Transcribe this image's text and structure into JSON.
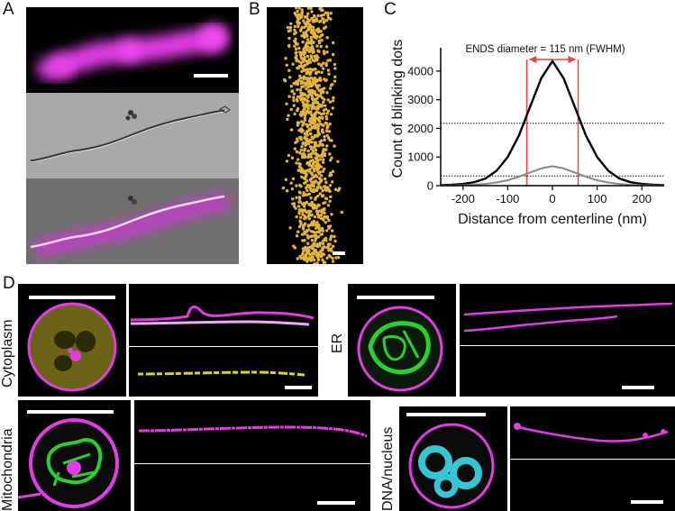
{
  "panel_labels": {
    "a": "A",
    "b": "B",
    "c": "C",
    "d": "D"
  },
  "panel_d": {
    "cytoplasm_label": "Cytoplasm",
    "er_label": "ER",
    "mitochondria_label": "Mitochondria",
    "dna_label": "DNA/nucleus"
  },
  "colors": {
    "magenta": "#e23ce6",
    "yellow": "#d8d62a",
    "green": "#29d12f",
    "cyan": "#35c6d6",
    "gold": "#e2b43a",
    "red": "#e84545"
  },
  "chart_data": {
    "type": "line",
    "xlabel": "Distance from centerline (nm)",
    "ylabel": "Count of blinking dots",
    "xlim": [
      -250,
      250
    ],
    "ylim": [
      0,
      4500
    ],
    "xticks": [
      -200,
      -100,
      0,
      100,
      200
    ],
    "yticks": [
      0,
      1000,
      2000,
      3000,
      4000
    ],
    "annotation": "ENDS diameter = 115 nm (FWHM)",
    "fwhm_bounds": [
      -57.5,
      57.5
    ],
    "half_max_lines": [
      2180,
      340
    ],
    "x": [
      -250,
      -225,
      -200,
      -175,
      -150,
      -125,
      -100,
      -75,
      -50,
      -25,
      0,
      25,
      50,
      75,
      100,
      125,
      150,
      175,
      200,
      225,
      250
    ],
    "series": [
      {
        "color": "#000000",
        "values": [
          20,
          30,
          60,
          120,
          250,
          520,
          1000,
          1750,
          2750,
          3750,
          4350,
          3750,
          2750,
          1750,
          1000,
          520,
          250,
          120,
          60,
          30,
          20
        ]
      },
      {
        "color": "#888888",
        "values": [
          5,
          8,
          15,
          30,
          60,
          110,
          190,
          310,
          460,
          600,
          680,
          600,
          460,
          310,
          190,
          110,
          60,
          30,
          15,
          8,
          5
        ]
      }
    ]
  }
}
